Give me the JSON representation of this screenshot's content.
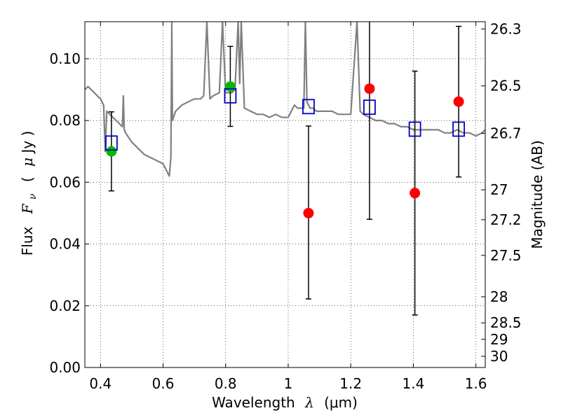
{
  "chart_data": {
    "type": "scatter",
    "xlabel": "Wavelength",
    "xlabel_symbol": "λ",
    "xlabel_unit": "(μm)",
    "ylabel": "Flux",
    "ylabel_symbol": "F",
    "ylabel_subscript": "ν",
    "ylabel_unit_open": "(",
    "ylabel_unit_mu": "μ",
    "ylabel_unit_rest": "Jy )",
    "y2label": "Magnitude (AB)",
    "xlim": [
      0.35,
      1.63
    ],
    "ylim": [
      0.0,
      0.112
    ],
    "grid": true,
    "grid_style": "dotted",
    "x_ticks": [
      {
        "value": 0.4,
        "label": "0.4"
      },
      {
        "value": 0.6,
        "label": "0.6"
      },
      {
        "value": 0.8,
        "label": "0.8"
      },
      {
        "value": 1.0,
        "label": "1"
      },
      {
        "value": 1.2,
        "label": "1.2"
      },
      {
        "value": 1.4,
        "label": "1.4"
      },
      {
        "value": 1.6,
        "label": "1.6"
      }
    ],
    "y_ticks": [
      {
        "value": 0.0,
        "label": "0.00"
      },
      {
        "value": 0.02,
        "label": "0.02"
      },
      {
        "value": 0.04,
        "label": "0.04"
      },
      {
        "value": 0.06,
        "label": "0.06"
      },
      {
        "value": 0.08,
        "label": "0.08"
      },
      {
        "value": 0.1,
        "label": "0.10"
      }
    ],
    "mag_ticks": [
      {
        "mag": 26.3,
        "label": "26.3"
      },
      {
        "mag": 26.5,
        "label": "26.5"
      },
      {
        "mag": 26.7,
        "label": "26.7"
      },
      {
        "mag": 27.0,
        "label": "27"
      },
      {
        "mag": 27.2,
        "label": "27.2"
      },
      {
        "mag": 27.5,
        "label": "27.5"
      },
      {
        "mag": 28.0,
        "label": "28"
      },
      {
        "mag": 28.5,
        "label": "28.5"
      },
      {
        "mag": 29.0,
        "label": "29"
      },
      {
        "mag": 30.0,
        "label": "30"
      }
    ],
    "colors": {
      "model": "#808080",
      "detections": "#00bb00",
      "limits": "#ff0000",
      "model_flux": "#0000cc",
      "errorbar": "#000000"
    },
    "model_spectrum": [
      [
        0.35,
        0.09
      ],
      [
        0.36,
        0.091
      ],
      [
        0.37,
        0.09
      ],
      [
        0.38,
        0.089
      ],
      [
        0.39,
        0.088
      ],
      [
        0.4,
        0.087
      ],
      [
        0.41,
        0.085
      ],
      [
        0.415,
        0.07
      ],
      [
        0.42,
        0.083
      ],
      [
        0.43,
        0.082
      ],
      [
        0.44,
        0.081
      ],
      [
        0.45,
        0.08
      ],
      [
        0.46,
        0.079
      ],
      [
        0.47,
        0.078
      ],
      [
        0.473,
        0.088
      ],
      [
        0.476,
        0.077
      ],
      [
        0.48,
        0.076
      ],
      [
        0.5,
        0.073
      ],
      [
        0.52,
        0.071
      ],
      [
        0.54,
        0.069
      ],
      [
        0.56,
        0.068
      ],
      [
        0.58,
        0.067
      ],
      [
        0.6,
        0.066
      ],
      [
        0.615,
        0.063
      ],
      [
        0.62,
        0.062
      ],
      [
        0.625,
        0.068
      ],
      [
        0.628,
        0.112
      ],
      [
        0.63,
        0.08
      ],
      [
        0.64,
        0.083
      ],
      [
        0.66,
        0.085
      ],
      [
        0.68,
        0.086
      ],
      [
        0.7,
        0.087
      ],
      [
        0.72,
        0.087
      ],
      [
        0.73,
        0.088
      ],
      [
        0.74,
        0.112
      ],
      [
        0.75,
        0.087
      ],
      [
        0.76,
        0.088
      ],
      [
        0.78,
        0.089
      ],
      [
        0.79,
        0.112
      ],
      [
        0.8,
        0.089
      ],
      [
        0.82,
        0.089
      ],
      [
        0.83,
        0.09
      ],
      [
        0.84,
        0.112
      ],
      [
        0.845,
        0.092
      ],
      [
        0.85,
        0.112
      ],
      [
        0.86,
        0.084
      ],
      [
        0.88,
        0.083
      ],
      [
        0.9,
        0.082
      ],
      [
        0.92,
        0.082
      ],
      [
        0.94,
        0.081
      ],
      [
        0.96,
        0.082
      ],
      [
        0.98,
        0.081
      ],
      [
        1.0,
        0.081
      ],
      [
        1.01,
        0.083
      ],
      [
        1.02,
        0.085
      ],
      [
        1.03,
        0.084
      ],
      [
        1.04,
        0.084
      ],
      [
        1.05,
        0.084
      ],
      [
        1.055,
        0.112
      ],
      [
        1.06,
        0.086
      ],
      [
        1.07,
        0.084
      ],
      [
        1.08,
        0.084
      ],
      [
        1.09,
        0.083
      ],
      [
        1.1,
        0.083
      ],
      [
        1.12,
        0.083
      ],
      [
        1.14,
        0.083
      ],
      [
        1.16,
        0.082
      ],
      [
        1.18,
        0.082
      ],
      [
        1.2,
        0.082
      ],
      [
        1.22,
        0.112
      ],
      [
        1.23,
        0.083
      ],
      [
        1.24,
        0.082
      ],
      [
        1.26,
        0.081
      ],
      [
        1.28,
        0.08
      ],
      [
        1.3,
        0.08
      ],
      [
        1.32,
        0.079
      ],
      [
        1.34,
        0.079
      ],
      [
        1.36,
        0.078
      ],
      [
        1.38,
        0.078
      ],
      [
        1.4,
        0.077
      ],
      [
        1.42,
        0.077
      ],
      [
        1.44,
        0.077
      ],
      [
        1.46,
        0.077
      ],
      [
        1.48,
        0.077
      ],
      [
        1.5,
        0.076
      ],
      [
        1.52,
        0.076
      ],
      [
        1.54,
        0.077
      ],
      [
        1.56,
        0.076
      ],
      [
        1.58,
        0.076
      ],
      [
        1.6,
        0.075
      ],
      [
        1.62,
        0.076
      ],
      [
        1.63,
        0.077
      ]
    ],
    "series": [
      {
        "marker": "circle",
        "color": "#00bb00",
        "points": [
          {
            "x": 0.435,
            "y": 0.07,
            "yerr_low": 0.0572,
            "yerr_high": 0.0828
          },
          {
            "x": 0.815,
            "y": 0.091,
            "yerr_low": 0.0781,
            "yerr_high": 0.104
          }
        ]
      },
      {
        "marker": "circle",
        "color": "#ff0000",
        "points": [
          {
            "x": 1.065,
            "y": 0.05,
            "yerr_low": 0.0222,
            "yerr_high": 0.0782
          },
          {
            "x": 1.26,
            "y": 0.0903,
            "yerr_low": 0.048,
            "yerr_high": 0.1126
          },
          {
            "x": 1.405,
            "y": 0.0565,
            "yerr_low": 0.017,
            "yerr_high": 0.096
          },
          {
            "x": 1.545,
            "y": 0.0861,
            "yerr_low": 0.0617,
            "yerr_high": 0.1105
          }
        ]
      },
      {
        "marker": "square-open",
        "color": "#0000cc",
        "points": [
          {
            "x": 0.435,
            "y": 0.0727
          },
          {
            "x": 0.815,
            "y": 0.088
          },
          {
            "x": 1.065,
            "y": 0.0845
          },
          {
            "x": 1.26,
            "y": 0.0843
          },
          {
            "x": 1.405,
            "y": 0.0772
          },
          {
            "x": 1.545,
            "y": 0.0772
          }
        ]
      }
    ]
  }
}
